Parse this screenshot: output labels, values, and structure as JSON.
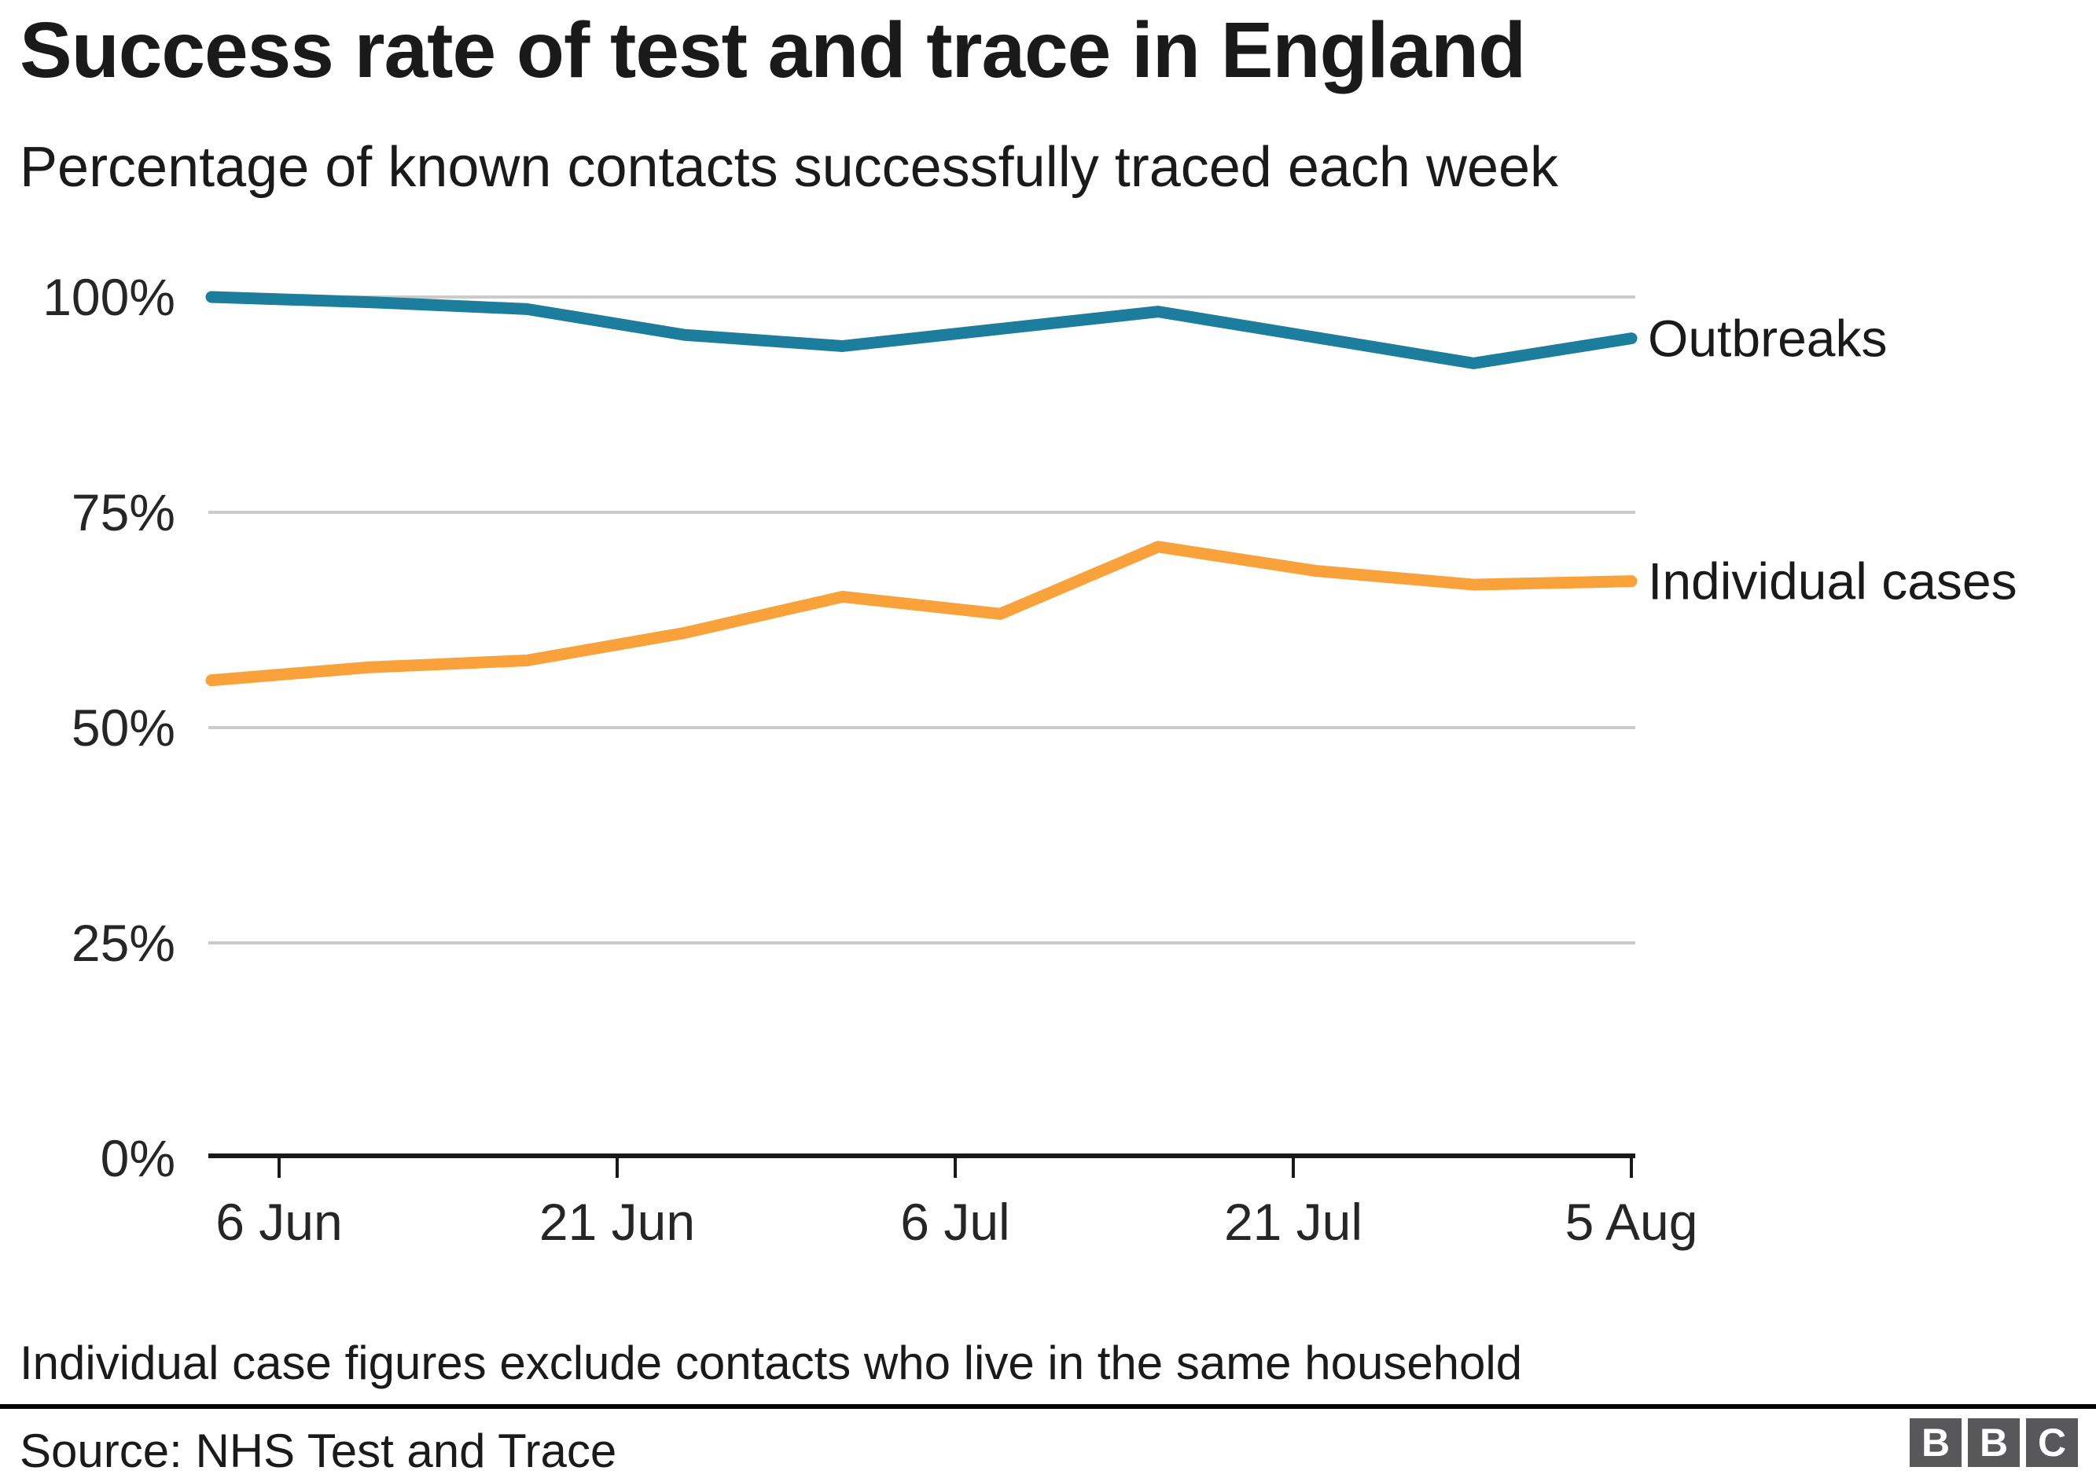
{
  "header": {
    "title": "Success rate of test and trace in England",
    "subtitle": "Percentage of known contacts successfully traced each week"
  },
  "chart_data": {
    "type": "line",
    "title": "Success rate of test and trace in England",
    "subtitle": "Percentage of known contacts successfully traced each week",
    "x": [
      "3 Jun",
      "10 Jun",
      "17 Jun",
      "24 Jun",
      "1 Jul",
      "8 Jul",
      "15 Jul",
      "22 Jul",
      "29 Jul",
      "5 Aug"
    ],
    "x_day_offsets": [
      0,
      7,
      14,
      21,
      28,
      35,
      42,
      49,
      56,
      63
    ],
    "x_axis_ticks": [
      {
        "label": "6 Jun",
        "day": 3
      },
      {
        "label": "21 Jun",
        "day": 18
      },
      {
        "label": "6 Jul",
        "day": 33
      },
      {
        "label": "21 Jul",
        "day": 48
      },
      {
        "label": "5 Aug",
        "day": 63
      }
    ],
    "y_ticks": [
      {
        "value": 100,
        "label": "100%"
      },
      {
        "value": 75,
        "label": "75%"
      },
      {
        "value": 50,
        "label": "50%"
      },
      {
        "value": 25,
        "label": "25%"
      },
      {
        "value": 0,
        "label": "0%"
      }
    ],
    "ylim": [
      0,
      100
    ],
    "grid": "horizontal",
    "legend_position": "right-of-line-end",
    "series": [
      {
        "name": "Outbreaks",
        "color": "#1c7d9c",
        "values": [
          100,
          99.4,
          98.6,
          95.6,
          94.3,
          96.3,
          98.3,
          95.3,
          92.3,
          95.2
        ]
      },
      {
        "name": "Individual cases",
        "color": "#f9a13b",
        "values": [
          55.5,
          57.0,
          57.8,
          61.0,
          65.2,
          63.2,
          71.0,
          68.2,
          66.6,
          67.0
        ]
      }
    ]
  },
  "footer": {
    "note": "Individual case figures exclude contacts who live in the same household",
    "source": "Source: NHS Test and Trace",
    "logo": [
      "B",
      "B",
      "C"
    ]
  }
}
